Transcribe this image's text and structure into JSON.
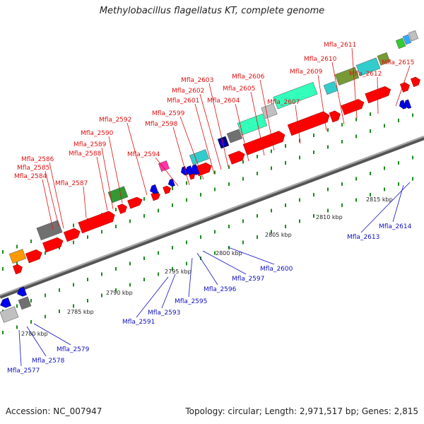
{
  "title": "Methylobacillus flagellatus KT, complete genome",
  "accession": "Accession: NC_007947",
  "topology": "Topology: circular; Length: 2,971,517 bp; Genes: 2,815",
  "colors": {
    "forward_label": "#e01010",
    "reverse_label": "#1010c0",
    "forward_gene": "#ff0000",
    "reverse_gene": "#0000ee",
    "backbone": "#8c8c8c",
    "tick": "#1a8c1a"
  },
  "scale_labels": [
    "2780 kbp",
    "2785 kbp",
    "2790 kbp",
    "2795 kbp",
    "2800 kbp",
    "2805 kbp",
    "2810 kbp",
    "2815 kbp"
  ],
  "forward_labels": [
    "Mfla_2584",
    "Mfla_2585",
    "Mfla_2586",
    "Mfla_2587",
    "Mfla_2588",
    "Mfla_2589",
    "Mfla_2590",
    "Mfla_2592",
    "Mfla_2594",
    "Mfla_2598",
    "Mfla_2599",
    "Mfla_2601",
    "Mfla_2602",
    "Mfla_2603",
    "Mfla_2604",
    "Mfla_2605",
    "Mfla_2606",
    "Mfla_2607",
    "Mfla_2609",
    "Mfla_2610",
    "Mfla_2611",
    "Mfla_2612",
    "Mfla_2615"
  ],
  "reverse_labels": [
    "Mfla_2577",
    "Mfla_2578",
    "Mfla_2579",
    "Mfla_2591",
    "Mfla_2593",
    "Mfla_2595",
    "Mfla_2596",
    "Mfla_2597",
    "Mfla_2600",
    "Mfla_2613",
    "Mfla_2614"
  ]
}
